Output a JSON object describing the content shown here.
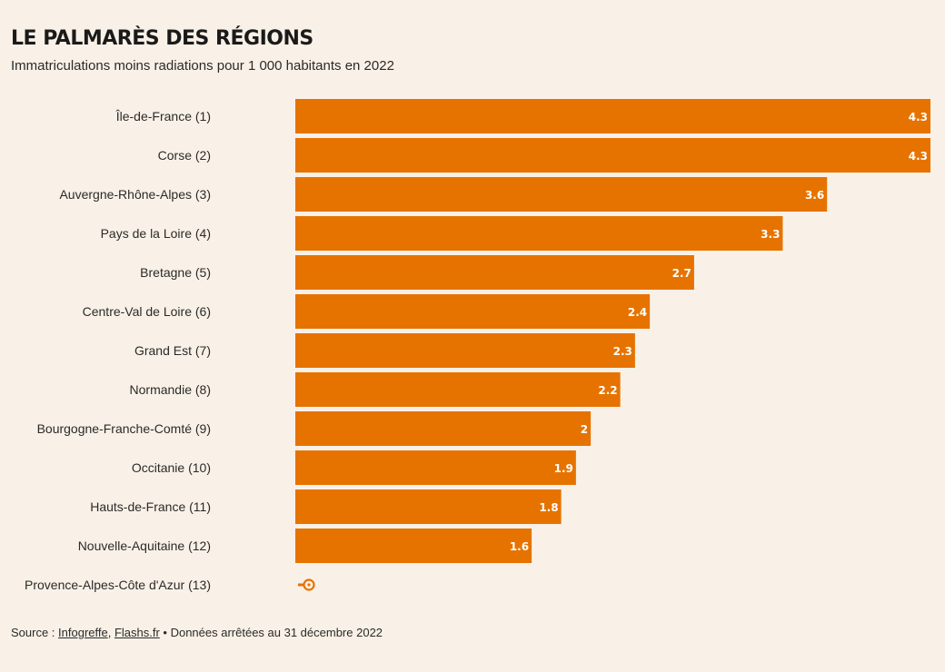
{
  "chart_data": {
    "type": "bar",
    "orientation": "horizontal",
    "title": "LE PALMARÈS DES RÉGIONS",
    "subtitle": "Immatriculations moins radiations pour 1 000 habitants en 2022",
    "categories": [
      "Île-de-France (1)",
      "Corse (2)",
      "Auvergne-Rhône-Alpes (3)",
      "Pays de la Loire (4)",
      "Bretagne (5)",
      "Centre-Val de Loire (6)",
      "Grand Est (7)",
      "Normandie (8)",
      "Bourgogne-Franche-Comté (9)",
      "Occitanie (10)",
      "Hauts-de-France (11)",
      "Nouvelle-Aquitaine (12)",
      "Provence-Alpes-Côte d'Azur (13)"
    ],
    "values": [
      4.3,
      4.3,
      3.6,
      3.3,
      2.7,
      2.4,
      2.3,
      2.2,
      2,
      1.9,
      1.8,
      1.6,
      0
    ],
    "value_labels": [
      "4.3",
      "4.3",
      "3.6",
      "3.3",
      "2.7",
      "2.4",
      "2.3",
      "2.2",
      "2",
      "1.9",
      "1.8",
      "1.6",
      ""
    ],
    "xlim": [
      0,
      4.3
    ],
    "bar_color": "#e67300",
    "grid": false,
    "legend": "none",
    "last_row_icon": "key-icon"
  },
  "source": {
    "prefix": "Source : ",
    "link1": "Infogreffe",
    "sep": ", ",
    "link2": "Flashs.fr",
    "suffix": " • Données arrêtées au 31 décembre 2022"
  }
}
